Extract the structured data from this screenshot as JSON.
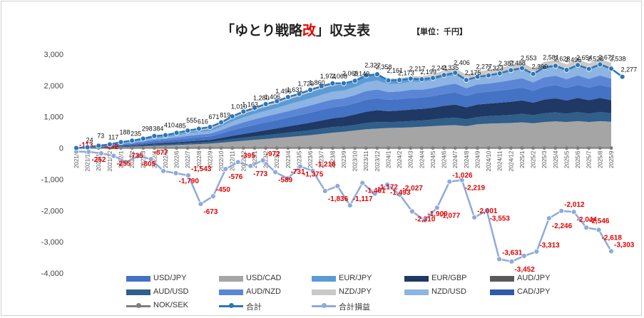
{
  "title": {
    "prefix": "「ゆとり戦略",
    "highlight": "改",
    "suffix": "」収支表"
  },
  "unit": "【単位：千円】",
  "chart_data": {
    "type": "area",
    "categories": [
      "2021/9",
      "2021/10",
      "2021/11",
      "2021/12",
      "2022/1",
      "2022/2",
      "2022/3",
      "2022/4",
      "2022/5",
      "2022/6",
      "2022/7",
      "2022/8",
      "2022/9",
      "2022/10",
      "2022/11",
      "2022/12",
      "2023/1",
      "2023/2",
      "2023/3",
      "2023/4",
      "2023/5",
      "2023/6",
      "2023/7",
      "2023/8",
      "2023/9",
      "2023/10",
      "2023/11",
      "2023/12",
      "2024/1",
      "2024/2",
      "2024/3",
      "2024/4",
      "2024/5",
      "2024/6",
      "2024/7",
      "2024/8",
      "2024/9",
      "2024/10",
      "2024/11",
      "2024/12",
      "2025/1",
      "2025/2",
      "2025/3",
      "2025/4",
      "2025/5",
      "2025/6",
      "2025/7",
      "2025/8",
      "2025/9"
    ],
    "category_labels": [
      "2021/9",
      "2021/10",
      "2021/11",
      "2021/12",
      "2022/1",
      "2022/2",
      "2022/3",
      "2022/4",
      "2022/5",
      "2022/6",
      "2022/7",
      "2022/8",
      "2022/9",
      "2022/10",
      "2022/11",
      "2022/12",
      "2023/1",
      "2023/2",
      "2023/3",
      "2023/4",
      "2023/5",
      "2023/6",
      "2023/7",
      "2023/8",
      "2023/9",
      "2023/10",
      "2023/11",
      "2023/12",
      "2024/1",
      "2024/2",
      "2024/3",
      "2024/4",
      "2024/5",
      "2024/6",
      "2024/7",
      "2024/8",
      "2024/9",
      "2024/10",
      "2024/11",
      "2024/12",
      "2025/1",
      "2025/2",
      "2025/3",
      "2025/4",
      "2025/5",
      "2025/6",
      "2025/7",
      "2025/8",
      "2025/9"
    ],
    "ylim": [
      -4000,
      3000
    ],
    "yticks": [
      -4000,
      -3000,
      -2000,
      -1000,
      0,
      1000,
      2000,
      3000
    ],
    "ytick_labels": [
      "-4,000",
      "-3,000",
      "-2,000",
      "-1,000",
      "0",
      "1,000",
      "2,000",
      "3,000"
    ],
    "grid": false,
    "legend_position": "bottom",
    "total_series": {
      "name": "合計",
      "color": "#2e75b6",
      "values": [
        0,
        24,
        73,
        117,
        188,
        235,
        298,
        384,
        410,
        485,
        555,
        616,
        671,
        819,
        1010,
        1163,
        1280,
        1406,
        1496,
        1631,
        1729,
        1860,
        1974,
        2068,
        2069,
        2149,
        2322,
        2358,
        2161,
        2173,
        2217,
        2199,
        2241,
        2335,
        2406,
        2175,
        2277,
        2323,
        2387,
        2488,
        2553,
        2369,
        2581,
        2628,
        2496,
        2654,
        2528,
        2672,
        2538,
        2277
      ]
    },
    "total_labels": [
      "24",
      "73",
      "117",
      "188",
      "235",
      "298",
      "384",
      "410",
      "485",
      "555",
      "616",
      "671",
      "819",
      "1,010",
      "1,163",
      "1,280",
      "1,406",
      "1,496",
      "1,631",
      "1,729",
      "1,860",
      "1,974",
      "2,068",
      "2,069",
      "2,149",
      "2,322",
      "2,358",
      "2,161",
      "2,173",
      "2,217",
      "2,199",
      "2,241",
      "2,335",
      "2,406",
      "2,175",
      "2,277",
      "2,323",
      "2,387",
      "2,488",
      "2,553",
      "2,369",
      "2,581",
      "2,628",
      "2,496",
      "2,654",
      "2,528",
      "2,672",
      "2,538",
      "2,277"
    ],
    "pnl_series": {
      "name": "合計損益",
      "color": "#8eaadb",
      "values": [
        -113,
        -123,
        -170,
        -252,
        -452,
        -255,
        -355,
        -735,
        -805,
        -877,
        -1790,
        -1543,
        -673,
        -450,
        -576,
        -395,
        -773,
        -972,
        -589,
        -731,
        -1375,
        -1216,
        -1836,
        -1117,
        -1461,
        -1172,
        -1493,
        -2027,
        -2310,
        -1909,
        -1077,
        -1026,
        -2219,
        -2001,
        -3553,
        -3631,
        -3452,
        -3313,
        -2246,
        -2012,
        -2044,
        -2546,
        -2618,
        -3303
      ]
    },
    "pnl_labels": [
      "-113",
      "-252",
      "-452",
      "-255",
      "-735",
      "-805",
      "-877",
      "-1,790",
      "-1,543",
      "-673",
      "-450",
      "-576",
      "-395",
      "-773",
      "-972",
      "-589",
      "-731",
      "-1,375",
      "-1,216",
      "-1,836",
      "-1,117",
      "-1,461",
      "-1,172",
      "-1,493",
      "-2,027",
      "-2,310",
      "-1,909",
      "-1,077",
      "-1,026",
      "-2,219",
      "-2,001",
      "-3,553",
      "-3,631",
      "-3,452",
      "-3,313",
      "-2,246",
      "-2,012",
      "-2,044",
      "-2,546",
      "-2,618",
      "-3,303"
    ],
    "stack_series": [
      {
        "name": "USD/CAD",
        "color": "#a5a5a5",
        "values": [
          0,
          5,
          12,
          20,
          30,
          40,
          50,
          65,
          80,
          95,
          110,
          125,
          140,
          170,
          200,
          230,
          260,
          290,
          320,
          350,
          380,
          410,
          450,
          490,
          520,
          560,
          600,
          620,
          640,
          650,
          660,
          680,
          700,
          720,
          730,
          700,
          760,
          780,
          790,
          800,
          820,
          790,
          830,
          850,
          830,
          860,
          830,
          860,
          840,
          820
        ]
      },
      {
        "name": "AUD/USD",
        "color": "#2f5f8a",
        "values": [
          0,
          4,
          10,
          15,
          22,
          28,
          35,
          45,
          40,
          45,
          50,
          55,
          60,
          70,
          90,
          100,
          110,
          120,
          130,
          140,
          150,
          160,
          170,
          180,
          170,
          180,
          200,
          210,
          190,
          190,
          200,
          200,
          210,
          230,
          240,
          220,
          230,
          240,
          250,
          260,
          270,
          260,
          280,
          290,
          270,
          290,
          270,
          290,
          270,
          250
        ]
      },
      {
        "name": "EUR/GBP",
        "color": "#1f3864",
        "values": [
          0,
          3,
          8,
          12,
          18,
          22,
          28,
          35,
          40,
          45,
          50,
          55,
          60,
          80,
          100,
          120,
          140,
          160,
          180,
          200,
          220,
          240,
          260,
          280,
          300,
          330,
          360,
          380,
          350,
          360,
          370,
          370,
          380,
          400,
          420,
          380,
          400,
          400,
          410,
          420,
          430,
          400,
          440,
          450,
          420,
          450,
          430,
          450,
          420,
          380
        ]
      },
      {
        "name": "USD/JPY",
        "color": "#4472c4",
        "values": [
          0,
          4,
          12,
          20,
          35,
          45,
          55,
          70,
          75,
          85,
          95,
          105,
          110,
          140,
          180,
          210,
          230,
          250,
          260,
          280,
          300,
          320,
          340,
          350,
          350,
          360,
          380,
          380,
          360,
          360,
          370,
          360,
          370,
          380,
          390,
          360,
          380,
          380,
          390,
          400,
          410,
          380,
          410,
          420,
          400,
          420,
          400,
          420,
          400,
          350
        ]
      },
      {
        "name": "AUD/NZD",
        "color": "#5b86d6",
        "values": [
          0,
          3,
          10,
          18,
          30,
          35,
          45,
          55,
          60,
          70,
          80,
          85,
          90,
          110,
          140,
          160,
          180,
          190,
          200,
          210,
          220,
          230,
          240,
          250,
          250,
          260,
          280,
          280,
          250,
          250,
          260,
          250,
          260,
          270,
          280,
          250,
          260,
          260,
          270,
          290,
          300,
          270,
          300,
          300,
          280,
          300,
          280,
          300,
          290,
          260
        ]
      },
      {
        "name": "NZD/USD",
        "color": "#8db4e2",
        "values": [
          0,
          3,
          10,
          15,
          25,
          30,
          40,
          50,
          60,
          70,
          80,
          85,
          90,
          110,
          140,
          160,
          170,
          180,
          190,
          210,
          220,
          230,
          240,
          250,
          250,
          260,
          280,
          290,
          250,
          250,
          260,
          250,
          260,
          270,
          280,
          250,
          240,
          250,
          260,
          290,
          300,
          270,
          290,
          300,
          280,
          300,
          290,
          310,
          300,
          260
        ]
      },
      {
        "name": "EUR/JPY",
        "color": "#5b9bd5",
        "values": [
          0,
          2,
          6,
          10,
          16,
          20,
          25,
          35,
          35,
          40,
          45,
          50,
          55,
          70,
          90,
          110,
          120,
          130,
          140,
          160,
          170,
          190,
          200,
          200,
          200,
          210,
          220,
          200,
          170,
          170,
          170,
          180,
          170,
          200,
          210,
          180,
          170,
          180,
          180,
          190,
          190,
          170,
          200,
          200,
          190,
          210,
          200,
          210,
          200,
          170
        ]
      },
      {
        "name": "NZD/JPY",
        "color": "#c9c9c9",
        "values": [
          0,
          0,
          5,
          7,
          12,
          15,
          20,
          29,
          20,
          35,
          45,
          56,
          66,
          69,
          70,
          73,
          70,
          86,
          76,
          81,
          69,
          80,
          84,
          68,
          29,
          0,
          2,
          -2,
          -49,
          -57,
          -93,
          -91,
          -109,
          -135,
          -144,
          -165,
          -163,
          -167,
          -163,
          -162,
          -167,
          -171,
          -169,
          -182,
          -174,
          -176,
          -172,
          -168,
          -182,
          -213
        ]
      }
    ],
    "legend": [
      {
        "name": "USD/JPY",
        "type": "area",
        "color": "#4472c4"
      },
      {
        "name": "USD/CAD",
        "type": "area",
        "color": "#a5a5a5"
      },
      {
        "name": "EUR/JPY",
        "type": "area",
        "color": "#5b9bd5"
      },
      {
        "name": "EUR/GBP",
        "type": "area",
        "color": "#1f3864"
      },
      {
        "name": "AUD/JPY",
        "type": "area",
        "color": "#595959"
      },
      {
        "name": "AUD/USD",
        "type": "area",
        "color": "#2f5f8a"
      },
      {
        "name": "AUD/NZD",
        "type": "area",
        "color": "#5b86d6"
      },
      {
        "name": "NZD/JPY",
        "type": "area",
        "color": "#c9c9c9"
      },
      {
        "name": "NZD/USD",
        "type": "area",
        "color": "#8db4e2"
      },
      {
        "name": "CAD/JPY",
        "type": "area",
        "color": "#2e5aa8"
      },
      {
        "name": "NOK/SEK",
        "type": "line",
        "color": "#7f7f7f"
      },
      {
        "name": "合計",
        "type": "line",
        "color": "#2e75b6"
      },
      {
        "name": "合計損益",
        "type": "line",
        "color": "#8eaadb"
      }
    ]
  }
}
